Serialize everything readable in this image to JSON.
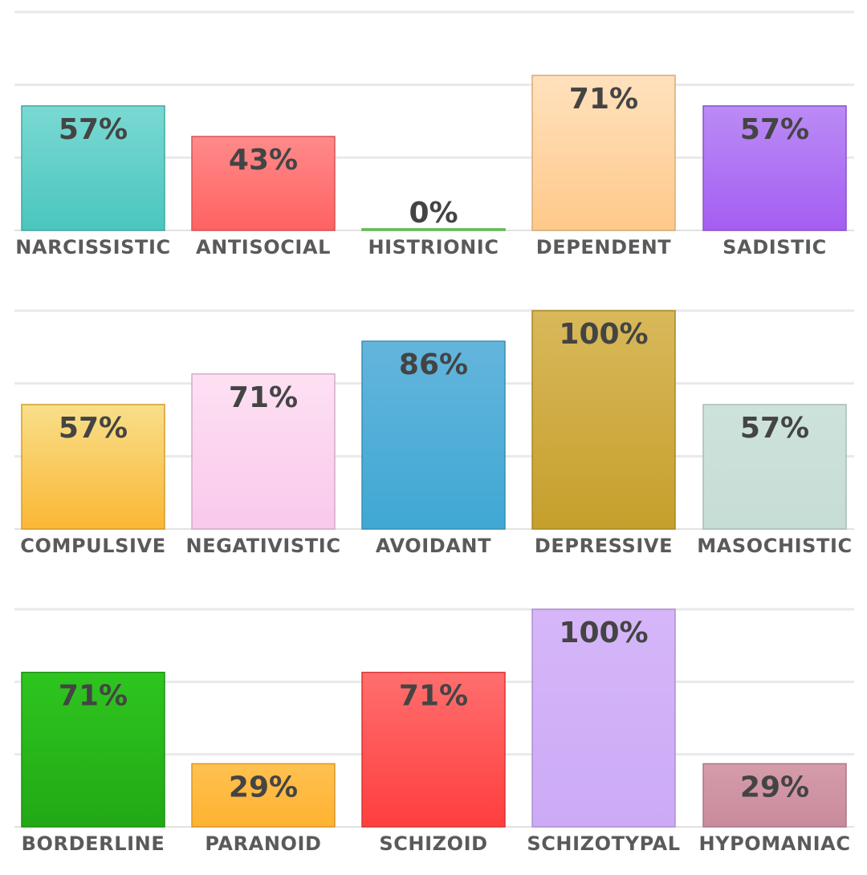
{
  "chart_data": [
    {
      "type": "bar",
      "categories": [
        "NARCISSISTIC",
        "ANTISOCIAL",
        "HISTRIONIC",
        "DEPENDENT",
        "SADISTIC"
      ],
      "values": [
        57,
        43,
        0,
        71,
        57
      ],
      "value_labels": [
        "57%",
        "43%",
        "0%",
        "71%",
        "57%"
      ],
      "colors": [
        [
          "#7ad9d2",
          "#4ac6be"
        ],
        [
          "#ff8a8a",
          "#ff6262"
        ],
        [
          "#8ee07a",
          "#6cd15a"
        ],
        [
          "#ffe1bd",
          "#ffc98a"
        ],
        [
          "#bb8bf5",
          "#a45ef2"
        ]
      ],
      "ylim": [
        0,
        100
      ],
      "grid": true
    },
    {
      "type": "bar",
      "categories": [
        "COMPULSIVE",
        "NEGATIVISTIC",
        "AVOIDANT",
        "DEPRESSIVE",
        "MASOCHISTIC"
      ],
      "values": [
        57,
        71,
        86,
        100,
        57
      ],
      "value_labels": [
        "57%",
        "71%",
        "86%",
        "100%",
        "57%"
      ],
      "colors": [
        [
          "#f8df8a",
          "#fbb735"
        ],
        [
          "#fde0f2",
          "#fac8ec"
        ],
        [
          "#64b5dc",
          "#3fa8d4"
        ],
        [
          "#d8b85a",
          "#c69f2c"
        ],
        [
          "#cde2db",
          "#c6ddd5"
        ]
      ],
      "ylim": [
        0,
        100
      ],
      "grid": true
    },
    {
      "type": "bar",
      "categories": [
        "BORDERLINE",
        "PARANOID",
        "SCHIZOID",
        "SCHIZOTYPAL",
        "HYPOMANIAC"
      ],
      "values": [
        71,
        29,
        71,
        100,
        29
      ],
      "value_labels": [
        "71%",
        "29%",
        "71%",
        "100%",
        "29%"
      ],
      "colors": [
        [
          "#2ec51f",
          "#22a916"
        ],
        [
          "#ffc150",
          "#ffb230"
        ],
        [
          "#ff6e6e",
          "#ff3e3e"
        ],
        [
          "#d6b6f9",
          "#ccaaf6"
        ],
        [
          "#d59caa",
          "#c98b9c"
        ]
      ],
      "ylim": [
        0,
        100
      ],
      "grid": true
    }
  ]
}
